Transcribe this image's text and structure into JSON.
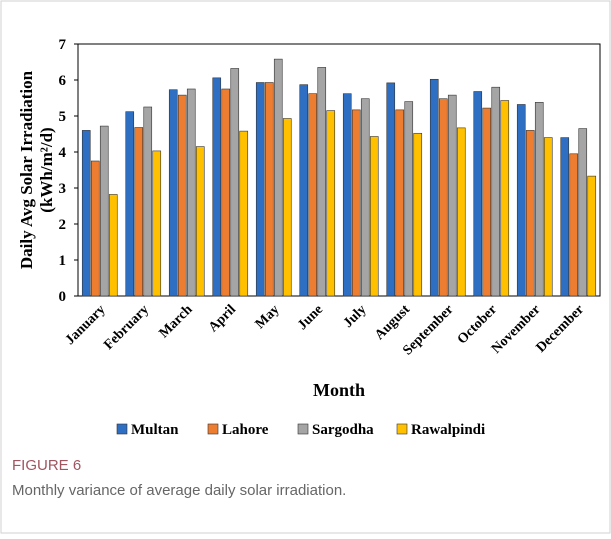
{
  "chart_data": {
    "type": "bar",
    "ylabel": [
      "Daily Avg Solar Irradiation",
      "(kWh/m²/d)"
    ],
    "xlabel": "Month",
    "categories": [
      "January",
      "February",
      "March",
      "April",
      "May",
      "June",
      "July",
      "August",
      "September",
      "October",
      "November",
      "December"
    ],
    "series": [
      {
        "name": "Multan",
        "color": "#2e6fc4",
        "values": [
          4.6,
          5.12,
          5.73,
          6.06,
          5.93,
          5.87,
          5.62,
          5.92,
          6.02,
          5.68,
          5.32,
          4.4
        ]
      },
      {
        "name": "Lahore",
        "color": "#ed7d31",
        "values": [
          3.75,
          4.68,
          5.58,
          5.75,
          5.93,
          5.62,
          5.17,
          5.17,
          5.48,
          5.22,
          4.6,
          3.95
        ]
      },
      {
        "name": "Sargodha",
        "color": "#a5a5a5",
        "values": [
          4.72,
          5.25,
          5.75,
          6.32,
          6.58,
          6.35,
          5.48,
          5.4,
          5.58,
          5.8,
          5.38,
          4.65
        ]
      },
      {
        "name": "Rawalpindi",
        "color": "#ffc000",
        "values": [
          2.82,
          4.03,
          4.15,
          4.58,
          4.93,
          5.15,
          4.43,
          4.52,
          4.67,
          5.43,
          4.4,
          3.33
        ]
      }
    ],
    "ylim": [
      0,
      7
    ],
    "yticks": [
      0,
      1,
      2,
      3,
      4,
      5,
      6,
      7
    ],
    "grid": false,
    "legend": "bottom",
    "figure_label": "FIGURE 6",
    "caption": "Monthly variance of average daily solar irradiation."
  }
}
